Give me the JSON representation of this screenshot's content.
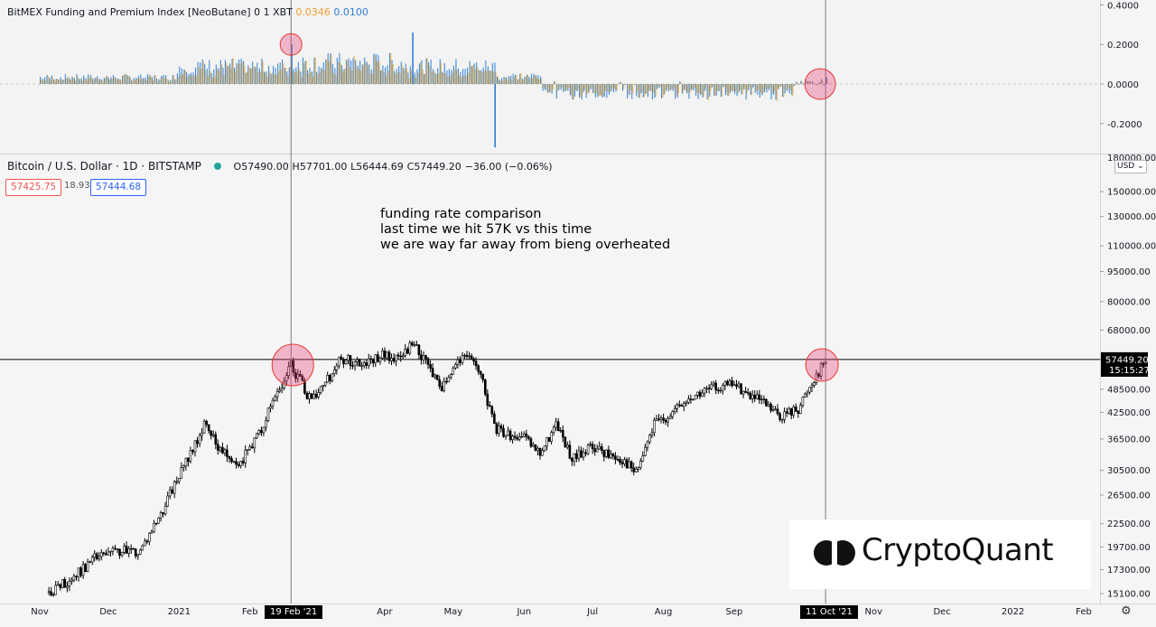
{
  "funding_header": {
    "title": "BitMEX Funding and Premium Index [NeoButane] 0 1 XBT",
    "v1": "0.0346",
    "v2": "0.0100",
    "v1_color": "#f0a030",
    "v2_color": "#2f7fd3"
  },
  "price_header": {
    "symbol": "Bitcoin / U.S. Dollar · 1D · BITSTAMP",
    "o_label": "O",
    "o": "57490.00",
    "h_label": "H",
    "h": "57701.00",
    "l_label": "L",
    "l": "56444.69",
    "c_label": "C",
    "c": "57449.20",
    "change": "−36.00 (−0.06%)",
    "bid": "57425.75",
    "spread": "18.93",
    "ask": "57444.68"
  },
  "annotation": {
    "line1": "funding rate comparison",
    "line2": "last time we hit 57K vs this time",
    "line3": "we are way far away from bieng overheated"
  },
  "currency_selector": "USD",
  "logo_text": "CryptoQuant",
  "crosshair": {
    "left_date": "19 Feb '21",
    "right_date": "11 Oct '21"
  },
  "colors": {
    "up": "#2f7fd3",
    "down": "#f5b041",
    "candle": "#000000",
    "circle_fill": "rgba(236,64,122,0.35)",
    "circle_stroke": "#e53935"
  },
  "chart_data": [
    {
      "type": "bar",
      "name": "funding",
      "ylim": [
        -0.33,
        0.41
      ],
      "yticks": [
        0.4,
        0.2,
        0.0,
        -0.2
      ],
      "ytick_labels": [
        "0.4000",
        "0.2000",
        "0.0000",
        "-0.2000"
      ],
      "zero_line": 0.0,
      "x_start": "2020-11-01",
      "x_end": "2021-10-11",
      "notable": [
        {
          "date": "2021-02-19",
          "value": 0.2
        },
        {
          "date": "2021-04-13",
          "value": 0.26
        },
        {
          "date": "2021-05-19",
          "value": -0.32
        },
        {
          "date": "2021-10-11",
          "value": 0.0346
        }
      ]
    },
    {
      "type": "line",
      "name": "price",
      "title": "Bitcoin / U.S. Dollar · 1D · BITSTAMP",
      "scale": "log",
      "yticks": [
        150000,
        130000,
        110000,
        95000,
        80000,
        68000,
        57492.91,
        48500,
        42500,
        36500,
        30500,
        26500,
        22500,
        19700,
        17300,
        15100
      ],
      "ytick_labels": [
        "150000.00",
        "130000.00",
        "110000.00",
        "95000.00",
        "80000.00",
        "68000.00",
        "57492.91",
        "48500.00",
        "42500.00",
        "36500.00",
        "30500.00",
        "26500.00",
        "22500.00",
        "19700.00",
        "17300.00",
        "15100.00"
      ],
      "top_tick_label": "180000.00",
      "last_price_label": "57449.20",
      "countdown": "15:15:27",
      "horizontal_line": 57492.91,
      "xticks": [
        "Nov",
        "Dec",
        "2021",
        "Feb",
        "Mar",
        "Apr",
        "May",
        "Jun",
        "Jul",
        "Aug",
        "Sep",
        "Nov",
        "Dec",
        "2022",
        "Feb"
      ],
      "xtick_dates": [
        "2020-11-01",
        "2020-12-01",
        "2021-01-01",
        "2021-02-01",
        "2021-03-01",
        "2021-04-01",
        "2021-05-01",
        "2021-06-01",
        "2021-07-01",
        "2021-08-01",
        "2021-09-01",
        "2021-11-01",
        "2021-12-01",
        "2022-01-01",
        "2022-02-01"
      ],
      "x": [
        "2020-11-05",
        "2020-11-15",
        "2020-11-25",
        "2020-12-05",
        "2020-12-15",
        "2020-12-25",
        "2021-01-05",
        "2021-01-12",
        "2021-01-20",
        "2021-01-28",
        "2021-02-05",
        "2021-02-12",
        "2021-02-19",
        "2021-02-27",
        "2021-03-05",
        "2021-03-13",
        "2021-03-22",
        "2021-03-31",
        "2021-04-07",
        "2021-04-14",
        "2021-04-20",
        "2021-04-26",
        "2021-05-03",
        "2021-05-10",
        "2021-05-15",
        "2021-05-19",
        "2021-05-25",
        "2021-06-01",
        "2021-06-08",
        "2021-06-15",
        "2021-06-22",
        "2021-06-30",
        "2021-07-08",
        "2021-07-15",
        "2021-07-20",
        "2021-07-28",
        "2021-08-05",
        "2021-08-14",
        "2021-08-23",
        "2021-09-01",
        "2021-09-07",
        "2021-09-13",
        "2021-09-21",
        "2021-09-29",
        "2021-10-05",
        "2021-10-11"
      ],
      "values": [
        15200,
        16400,
        18500,
        19200,
        19300,
        24500,
        33000,
        39500,
        34000,
        32000,
        37500,
        46500,
        55700,
        46200,
        49000,
        58000,
        55500,
        58800,
        57000,
        63500,
        55000,
        49000,
        57000,
        58000,
        48000,
        39000,
        37500,
        36500,
        33500,
        39500,
        32500,
        35000,
        33500,
        32300,
        30000,
        39700,
        42500,
        46500,
        49000,
        50000,
        47000,
        45000,
        41500,
        43500,
        50500,
        57449
      ]
    }
  ]
}
